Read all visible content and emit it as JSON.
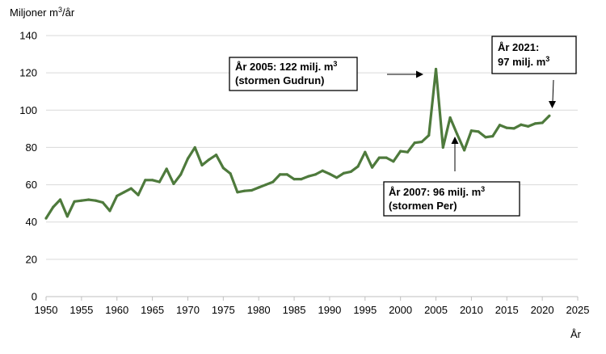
{
  "chart_data": {
    "type": "line",
    "ylabel": "Miljoner m3/år",
    "ylabel_prefix": "Miljoner m",
    "ylabel_sup": "3",
    "ylabel_suffix": "/år",
    "xlabel": "År",
    "ylim": [
      0,
      140
    ],
    "xlim": [
      1950,
      2025
    ],
    "yticks": [
      0,
      20,
      40,
      60,
      80,
      100,
      120,
      140
    ],
    "xticks": [
      1950,
      1955,
      1960,
      1965,
      1970,
      1975,
      1980,
      1985,
      1990,
      1995,
      2000,
      2005,
      2010,
      2015,
      2020,
      2025
    ],
    "grid": "horizontal",
    "line_color": "#4e7a3c",
    "series": [
      {
        "x": [
          1950,
          1951,
          1952,
          1953,
          1954,
          1955,
          1956,
          1957,
          1958,
          1959,
          1960,
          1961,
          1962,
          1963,
          1964,
          1965,
          1966,
          1967,
          1968,
          1969,
          1970,
          1971,
          1972,
          1973,
          1974,
          1975,
          1976,
          1977,
          1978,
          1979,
          1980,
          1981,
          1982,
          1983,
          1984,
          1985,
          1986,
          1987,
          1988,
          1989,
          1990,
          1991,
          1992,
          1993,
          1994,
          1995,
          1996,
          1997,
          1998,
          1999,
          2000,
          2001,
          2002,
          2003,
          2004,
          2005,
          2006,
          2007,
          2008,
          2009,
          2010,
          2011,
          2012,
          2013,
          2014,
          2015,
          2016,
          2017,
          2018,
          2019,
          2020,
          2021
        ],
        "values": [
          42,
          48,
          52,
          43,
          51,
          51.5,
          52,
          51.5,
          50.5,
          46,
          54,
          56,
          58,
          54.5,
          62.5,
          62.5,
          61.5,
          68.5,
          60.5,
          65.5,
          74,
          80,
          70.5,
          73.5,
          76,
          69,
          66,
          56,
          56.7,
          57,
          58.5,
          60,
          61.5,
          65.5,
          65.5,
          63,
          63,
          64.5,
          65.5,
          67.5,
          65.8,
          63.8,
          66.2,
          67,
          69.8,
          77.5,
          69.3,
          74.5,
          74.5,
          72.5,
          78,
          77.5,
          82.5,
          83,
          86.5,
          122,
          80,
          96,
          87,
          78.5,
          89,
          88.5,
          85.5,
          86,
          92,
          90.5,
          90.2,
          92.2,
          91.3,
          92.8,
          93.2,
          97
        ]
      }
    ],
    "annotations": [
      {
        "id": "gudrun",
        "line1_prefix": "År 2005: 122 milj. m",
        "line1_sup": "3",
        "line2": "(stormen Gudrun)",
        "x": 2005,
        "y": 122
      },
      {
        "id": "per",
        "line1_prefix": "År 2007: 96 milj. m",
        "line1_sup": "3",
        "line2": "(stormen Per)",
        "x": 2007,
        "y": 96
      },
      {
        "id": "y2021",
        "line1_prefix": "År 2021:",
        "line1_sup": "",
        "line2_prefix": "97 milj. m",
        "line2_sup": "3",
        "x": 2021,
        "y": 97
      }
    ]
  }
}
